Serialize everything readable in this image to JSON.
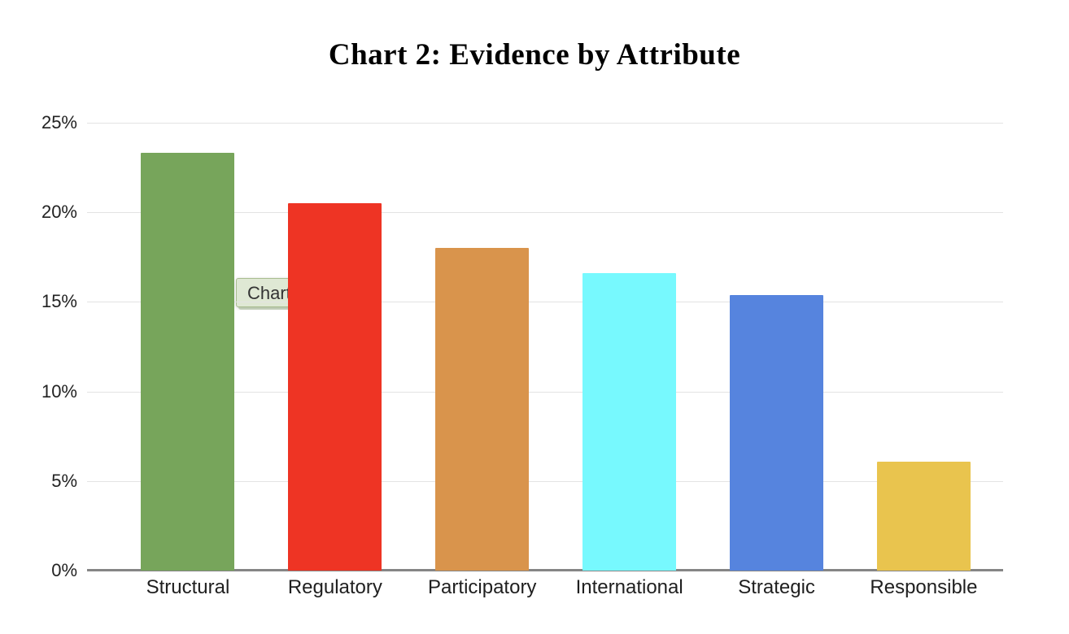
{
  "title": "Chart 2: Evidence by Attribute",
  "tooltip": {
    "label": "Chart",
    "bg_color": "#dfe8d4",
    "border_color": "#a9bd90",
    "shadow_color": "#7e9a63",
    "text_color": "#333333"
  },
  "chart_data": {
    "type": "bar",
    "title": "Chart 2: Evidence by Attribute",
    "categories": [
      "Structural",
      "Regulatory",
      "Participatory",
      "International",
      "Strategic",
      "Responsible"
    ],
    "values": [
      23.3,
      20.5,
      18.0,
      16.6,
      15.4,
      6.1
    ],
    "value_unit": "%",
    "bar_colors": [
      "#77a55b",
      "#ee3424",
      "#d9944c",
      "#77f9fe",
      "#5684de",
      "#e9c44e"
    ],
    "xlabel": "",
    "ylabel": "",
    "ylim": [
      0,
      25
    ],
    "ytick_step": 5,
    "yticks": [
      "0%",
      "5%",
      "10%",
      "15%",
      "20%",
      "25%"
    ],
    "grid": true,
    "legend_position": "none",
    "gridline_color": "#e3e3e3",
    "axis_line_color": "#858585",
    "tick_text_color": "#222222"
  }
}
